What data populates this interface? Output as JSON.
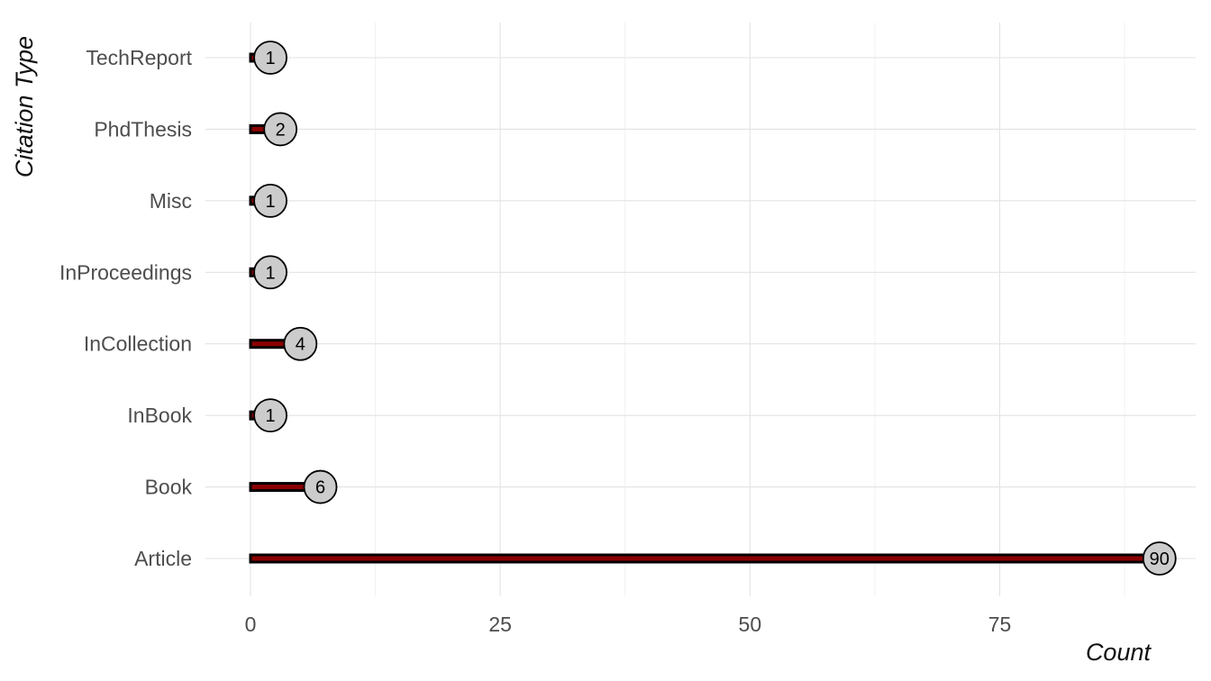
{
  "chart_data": {
    "type": "bar",
    "orientation": "horizontal",
    "categories": [
      "Article",
      "Book",
      "InBook",
      "InCollection",
      "InProceedings",
      "Misc",
      "PhdThesis",
      "TechReport"
    ],
    "values": [
      90,
      6,
      1,
      4,
      1,
      1,
      2,
      1
    ],
    "data_labels": [
      "90",
      "6",
      "1",
      "4",
      "1",
      "1",
      "2",
      "1"
    ],
    "xlabel": "Count",
    "ylabel": "Citation Type",
    "xlim": [
      -4.5,
      92.5
    ],
    "x_ticks": [
      0,
      25,
      50,
      75
    ],
    "x_tick_labels": [
      "0",
      "25",
      "50",
      "75"
    ],
    "grid": true,
    "legend": "none",
    "colors": {
      "bar_fill": "#8b0000",
      "bar_outline": "#000000",
      "point_fill": "#cccccc",
      "point_stroke": "#000000",
      "grid": "#e3e3e3",
      "tick_text": "#4d4d4d"
    }
  }
}
